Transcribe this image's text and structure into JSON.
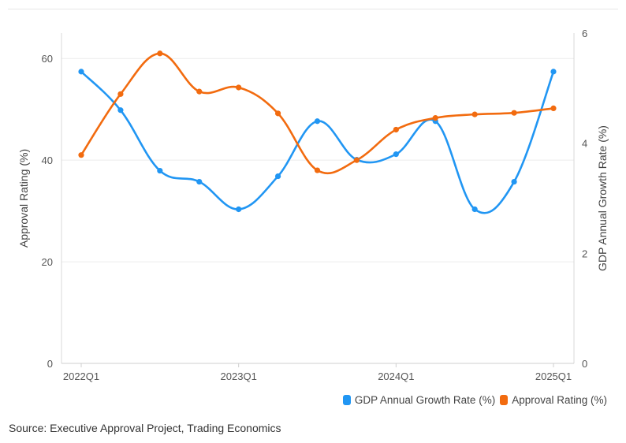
{
  "chart_data": {
    "type": "line",
    "x": [
      "2022Q1",
      "2022Q2",
      "2022Q3",
      "2022Q4",
      "2023Q1",
      "2023Q2",
      "2023Q3",
      "2023Q4",
      "2024Q1",
      "2024Q2",
      "2024Q3",
      "2024Q4",
      "2025Q1"
    ],
    "x_tick_labels": [
      "2022Q1",
      "2023Q1",
      "2024Q1",
      "2025Q1"
    ],
    "left_axis": {
      "label": "Approval Rating (%)",
      "ylim": [
        0,
        65
      ],
      "ticks": [
        "0",
        "20",
        "40",
        "60"
      ]
    },
    "right_axis": {
      "label": "GDP Annual Growth Rate (%)",
      "ylim": [
        0,
        6
      ],
      "ticks": [
        "0",
        "2",
        "4",
        "6"
      ]
    },
    "series": [
      {
        "name": "GDP Annual Growth Rate (%)",
        "axis": "right",
        "color": "#2196f3",
        "values": [
          5.3,
          4.6,
          3.5,
          3.3,
          2.8,
          3.4,
          4.4,
          3.7,
          3.8,
          4.4,
          2.8,
          3.3,
          5.3
        ]
      },
      {
        "name": "Approval Rating (%)",
        "axis": "left",
        "color": "#f26b0f",
        "values": [
          41,
          53,
          61,
          53.5,
          54.3,
          49.2,
          38,
          40,
          46,
          48.3,
          49,
          49.3,
          50.2
        ]
      }
    ],
    "legend": [
      "GDP Annual Growth Rate (%)",
      "Approval Rating (%)"
    ],
    "grid": true
  },
  "source_text": "Source: Executive Approval Project, Trading Economics"
}
